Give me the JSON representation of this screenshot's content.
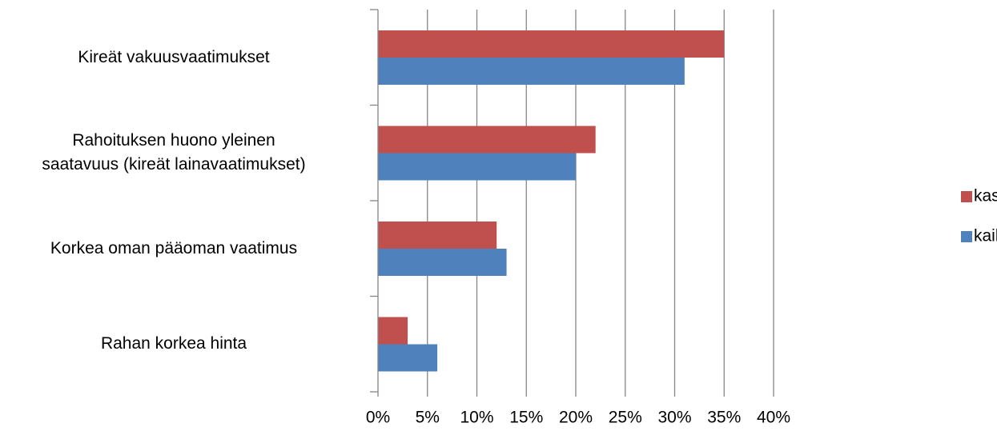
{
  "chart_data": {
    "type": "bar",
    "orientation": "horizontal",
    "categories": [
      "Kireät vakuusvaatimukset",
      "Rahoituksen huono yleinen\nsaatavuus (kireät lainavaatimukset)",
      "Korkea oman pääoman vaatimus",
      "Rahan korkea hinta"
    ],
    "series": [
      {
        "name": "kasvuhakuiset",
        "color": "#c0504d",
        "values": [
          35,
          22,
          12,
          3
        ]
      },
      {
        "name": "kaikki",
        "color": "#4f81bd",
        "values": [
          31,
          20,
          13,
          6
        ]
      }
    ],
    "xlim": [
      0,
      40
    ],
    "xticks": [
      {
        "value": 0,
        "label": "0%"
      },
      {
        "value": 5,
        "label": "5%"
      },
      {
        "value": 10,
        "label": "10%"
      },
      {
        "value": 15,
        "label": "15%"
      },
      {
        "value": 20,
        "label": "20%"
      },
      {
        "value": 25,
        "label": "25%"
      },
      {
        "value": 30,
        "label": "30%"
      },
      {
        "value": 35,
        "label": "35%"
      },
      {
        "value": 40,
        "label": "40%"
      }
    ],
    "grid": true,
    "legend": "right"
  }
}
